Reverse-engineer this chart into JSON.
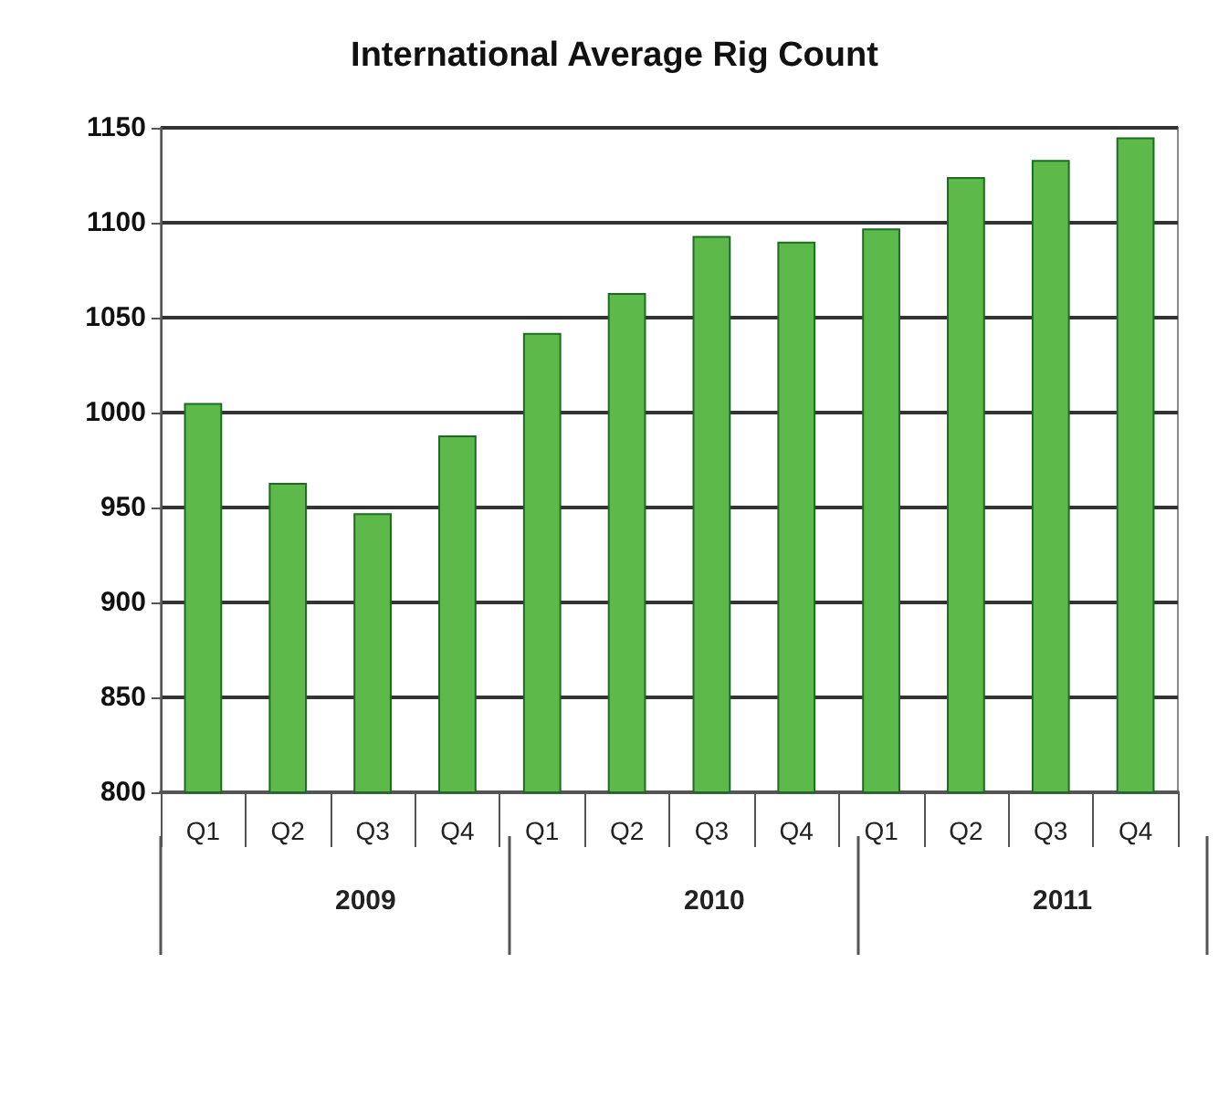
{
  "chart_data": {
    "type": "bar",
    "title": "International Average Rig Count",
    "categories": [
      "Q1",
      "Q2",
      "Q3",
      "Q4",
      "Q1",
      "Q2",
      "Q3",
      "Q4",
      "Q1",
      "Q2",
      "Q3",
      "Q4"
    ],
    "values": [
      1005,
      963,
      947,
      988,
      1042,
      1063,
      1093,
      1090,
      1097,
      1124,
      1133,
      1145
    ],
    "color": "#5cb94a",
    "ylim": [
      800,
      1150
    ],
    "yticks": [
      800,
      850,
      900,
      950,
      1000,
      1050,
      1100,
      1150
    ],
    "grid": "y",
    "annotations": [
      "2009",
      "2010",
      "2011"
    ]
  }
}
